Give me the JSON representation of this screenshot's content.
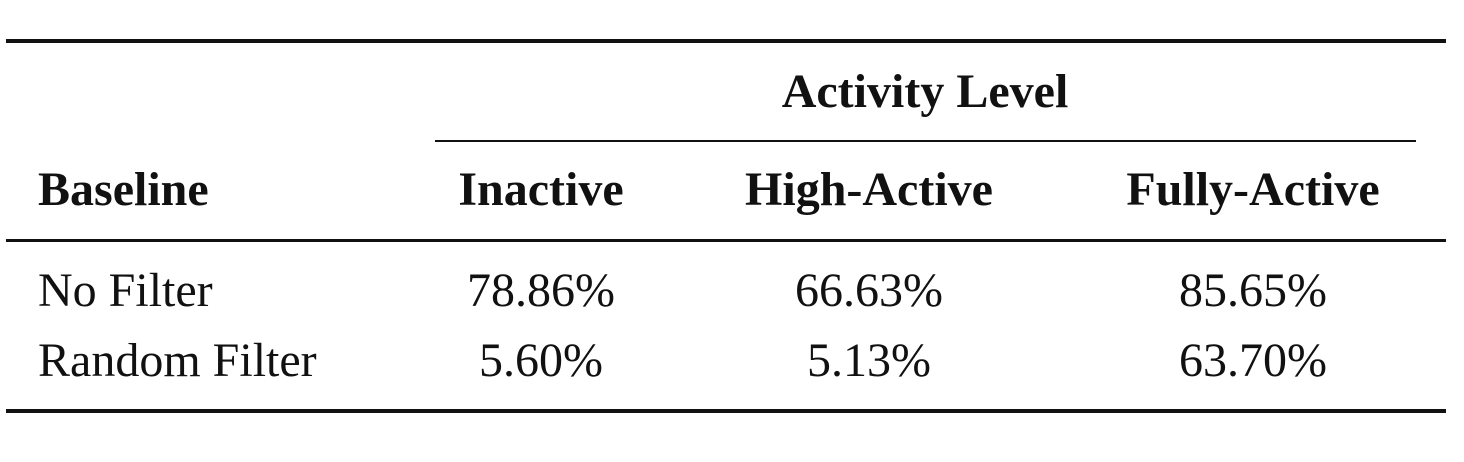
{
  "table": {
    "group_header": "Activity Level",
    "columns": [
      "Baseline",
      "Inactive",
      "High-Active",
      "Fully-Active"
    ],
    "rows": [
      [
        "No Filter",
        "78.86%",
        "66.63%",
        "85.65%"
      ],
      [
        "Random Filter",
        "5.60%",
        "5.13%",
        "63.70%"
      ]
    ]
  }
}
